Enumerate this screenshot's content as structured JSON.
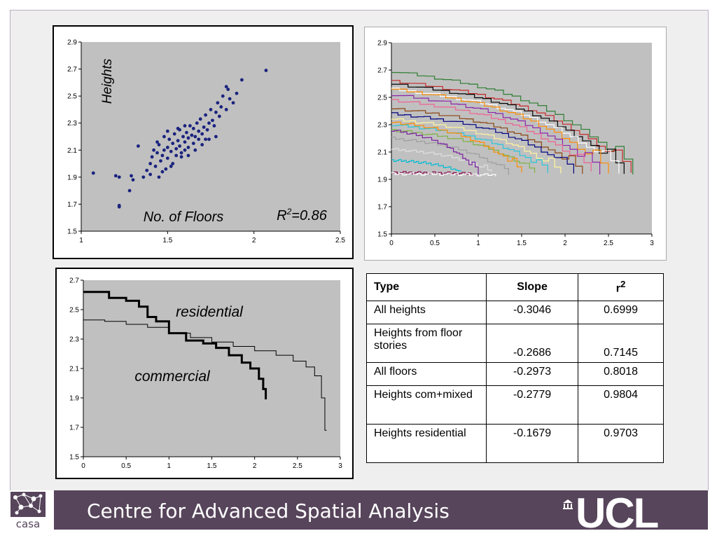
{
  "footer": {
    "title": "Centre for Advanced Spatial Analysis",
    "logo_left_text": "casa",
    "logo_right_text": "UCL",
    "bar_color": "#57455b"
  },
  "chart_data": [
    {
      "type": "scatter",
      "title": "",
      "xlabel": "No. of Floors",
      "ylabel": "Heights",
      "annotation": "R2=0.86",
      "xlim": [
        1,
        2.5
      ],
      "ylim": [
        1.5,
        2.9
      ],
      "xticks": [
        "1",
        "1.5",
        "2",
        "2.5"
      ],
      "yticks": [
        "1.5",
        "1.7",
        "1.9",
        "2.1",
        "2.3",
        "2.5",
        "2.7",
        "2.9"
      ],
      "color": "#1a237e",
      "grid": false,
      "points": [
        [
          1.07,
          1.93
        ],
        [
          1.2,
          1.91
        ],
        [
          1.22,
          1.9
        ],
        [
          1.29,
          1.91
        ],
        [
          1.22,
          1.68
        ],
        [
          1.22,
          1.69
        ],
        [
          1.28,
          1.8
        ],
        [
          1.3,
          1.88
        ],
        [
          1.33,
          2.13
        ],
        [
          1.36,
          1.9
        ],
        [
          1.38,
          1.95
        ],
        [
          1.4,
          2.0
        ],
        [
          1.4,
          1.92
        ],
        [
          1.41,
          2.05
        ],
        [
          1.42,
          2.1
        ],
        [
          1.43,
          1.98
        ],
        [
          1.44,
          2.08
        ],
        [
          1.45,
          2.14
        ],
        [
          1.45,
          1.9
        ],
        [
          1.46,
          2.02
        ],
        [
          1.47,
          2.06
        ],
        [
          1.48,
          2.2
        ],
        [
          1.48,
          2.1
        ],
        [
          1.49,
          1.96
        ],
        [
          1.5,
          2.12
        ],
        [
          1.5,
          2.04
        ],
        [
          1.51,
          2.18
        ],
        [
          1.52,
          2.09
        ],
        [
          1.53,
          2.15
        ],
        [
          1.53,
          2.0
        ],
        [
          1.54,
          2.22
        ],
        [
          1.55,
          2.11
        ],
        [
          1.55,
          2.06
        ],
        [
          1.56,
          2.17
        ],
        [
          1.57,
          2.25
        ],
        [
          1.57,
          2.13
        ],
        [
          1.58,
          2.08
        ],
        [
          1.59,
          2.2
        ],
        [
          1.6,
          2.16
        ],
        [
          1.6,
          2.1
        ],
        [
          1.61,
          2.23
        ],
        [
          1.62,
          2.19
        ],
        [
          1.62,
          2.12
        ],
        [
          1.63,
          2.28
        ],
        [
          1.64,
          2.21
        ],
        [
          1.65,
          2.15
        ],
        [
          1.65,
          2.26
        ],
        [
          1.66,
          2.2
        ],
        [
          1.67,
          2.3
        ],
        [
          1.68,
          2.18
        ],
        [
          1.68,
          2.24
        ],
        [
          1.69,
          2.33
        ],
        [
          1.7,
          2.22
        ],
        [
          1.71,
          2.27
        ],
        [
          1.72,
          2.36
        ],
        [
          1.73,
          2.25
        ],
        [
          1.74,
          2.3
        ],
        [
          1.75,
          2.4
        ],
        [
          1.76,
          2.32
        ],
        [
          1.77,
          2.28
        ],
        [
          1.78,
          2.38
        ],
        [
          1.79,
          2.45
        ],
        [
          1.8,
          2.35
        ],
        [
          1.81,
          2.42
        ],
        [
          1.82,
          2.5
        ],
        [
          1.84,
          2.4
        ],
        [
          1.85,
          2.55
        ],
        [
          1.86,
          2.48
        ],
        [
          1.88,
          2.45
        ],
        [
          1.9,
          2.52
        ],
        [
          1.93,
          2.62
        ],
        [
          1.84,
          2.57
        ],
        [
          1.58,
          2.05
        ],
        [
          1.52,
          1.98
        ],
        [
          1.47,
          1.94
        ],
        [
          1.62,
          2.06
        ],
        [
          1.66,
          2.1
        ],
        [
          1.7,
          2.14
        ],
        [
          1.74,
          2.18
        ],
        [
          1.56,
          2.26
        ],
        [
          1.5,
          2.24
        ],
        [
          1.44,
          2.16
        ],
        [
          1.6,
          2.28
        ],
        [
          1.78,
          2.2
        ],
        [
          1.72,
          2.18
        ],
        [
          2.07,
          2.69
        ]
      ]
    },
    {
      "type": "line",
      "title": "",
      "xlabel": "",
      "ylabel": "",
      "xlim": [
        0,
        3
      ],
      "ylim": [
        1.5,
        2.9
      ],
      "xticks": [
        "0",
        "0.5",
        "1",
        "1.5",
        "2",
        "2.5",
        "3"
      ],
      "yticks": [
        "1.5",
        "1.7",
        "1.9",
        "2.1",
        "2.3",
        "2.5",
        "2.7",
        "2.9"
      ],
      "grid": false,
      "series": [
        {
          "color": "#2e7d32",
          "start": 2.69,
          "end": 1.94,
          "x_end": 2.78
        },
        {
          "color": "#c62828",
          "start": 2.62,
          "end": 1.94,
          "x_end": 2.76
        },
        {
          "color": "#000000",
          "start": 2.6,
          "end": 1.94,
          "x_end": 2.68
        },
        {
          "color": "#ffffff",
          "start": 2.56,
          "end": 1.95,
          "x_end": 2.62
        },
        {
          "color": "#ff8c00",
          "start": 2.56,
          "end": 1.94,
          "x_end": 2.5
        },
        {
          "color": "#8e24aa",
          "start": 2.52,
          "end": 1.94,
          "x_end": 2.4
        },
        {
          "color": "#f06292",
          "start": 2.48,
          "end": 1.95,
          "x_end": 2.3
        },
        {
          "color": "#8b4513",
          "start": 2.42,
          "end": 1.94,
          "x_end": 2.2
        },
        {
          "color": "#000080",
          "start": 2.38,
          "end": 1.95,
          "x_end": 2.1
        },
        {
          "color": "#fff59d",
          "start": 2.34,
          "end": 1.94,
          "x_end": 1.95
        },
        {
          "color": "#26c6da",
          "start": 2.3,
          "end": 1.95,
          "x_end": 1.8
        },
        {
          "color": "#7cb342",
          "start": 2.26,
          "end": 1.94,
          "x_end": 1.65
        },
        {
          "color": "#ff8c00",
          "start": 2.32,
          "end": 1.95,
          "x_end": 1.5
        },
        {
          "color": "#9e9e9e",
          "start": 2.2,
          "end": 1.94,
          "x_end": 1.35
        },
        {
          "color": "#e0e0e0",
          "start": 2.12,
          "end": 1.95,
          "x_end": 1.15
        },
        {
          "color": "#7b1fa2",
          "start": 2.26,
          "end": 1.94,
          "x_end": 1.0
        },
        {
          "color": "#00bcd4",
          "start": 2.04,
          "end": 1.95,
          "x_end": 0.8
        },
        {
          "color": "#880e4f",
          "start": 1.95,
          "end": 1.94,
          "x_end": 0.95
        },
        {
          "color": "#ffffff",
          "start": 1.94,
          "end": 1.93,
          "x_end": 1.2
        }
      ]
    },
    {
      "type": "line",
      "title": "",
      "xlabel": "",
      "ylabel": "",
      "xlim": [
        0,
        3
      ],
      "ylim": [
        1.5,
        2.7
      ],
      "xticks": [
        "0",
        "0.5",
        "1",
        "1.5",
        "2",
        "2.5",
        "3"
      ],
      "yticks": [
        "1.5",
        "1.7",
        "1.9",
        "2.1",
        "2.3",
        "2.5",
        "2.7"
      ],
      "grid": false,
      "annotations": [
        "residential",
        "commercial"
      ],
      "series": [
        {
          "name": "residential",
          "width": 3,
          "x": [
            0,
            0.3,
            0.5,
            0.65,
            0.75,
            0.85,
            1.0,
            1.2,
            1.4,
            1.55,
            1.7,
            1.85,
            1.95,
            2.05,
            2.1,
            2.13
          ],
          "y": [
            2.62,
            2.58,
            2.56,
            2.52,
            2.45,
            2.42,
            2.34,
            2.29,
            2.27,
            2.24,
            2.19,
            2.14,
            2.1,
            2.03,
            1.96,
            1.89
          ]
        },
        {
          "name": "commercial",
          "width": 1,
          "x": [
            0,
            0.25,
            0.5,
            0.75,
            1.0,
            1.25,
            1.5,
            1.75,
            2.0,
            2.25,
            2.45,
            2.6,
            2.7,
            2.78,
            2.82,
            2.82,
            2.84
          ],
          "y": [
            2.43,
            2.42,
            2.4,
            2.38,
            2.34,
            2.31,
            2.28,
            2.25,
            2.22,
            2.19,
            2.15,
            2.11,
            2.05,
            1.9,
            1.88,
            1.68,
            1.68
          ]
        }
      ]
    },
    {
      "type": "table",
      "columns": [
        "Type",
        "Slope",
        "r2"
      ],
      "rows": [
        [
          "All heights",
          "-0.3046",
          "0.6999"
        ],
        [
          "Heights from floor stories",
          "-0.2686",
          "0.7145"
        ],
        [
          "All floors",
          "-0.2973",
          "0.8018"
        ],
        [
          "Heights com+mixed",
          "-0.2779",
          "0.9804"
        ],
        [
          "Heights residential",
          "-0.1679",
          "0.9703"
        ]
      ]
    }
  ],
  "table": {
    "headers": {
      "type": "Type",
      "slope": "Slope",
      "r": "r",
      "sup": "2"
    },
    "rows": [
      {
        "type": "All heights",
        "slope": "-0.3046",
        "r2": "0.6999"
      },
      {
        "type": "Heights from floor stories",
        "slope": "-0.2686",
        "r2": "0.7145"
      },
      {
        "type": "All floors",
        "slope": "-0.2973",
        "r2": "0.8018"
      },
      {
        "type": "Heights com+mixed",
        "slope": "-0.2779",
        "r2": "0.9804"
      },
      {
        "type": "Heights residential",
        "slope": "-0.1679",
        "r2": "0.9703"
      }
    ]
  }
}
